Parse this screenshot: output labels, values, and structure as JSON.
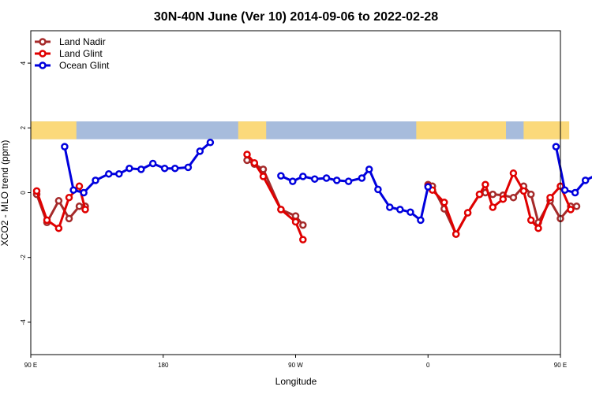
{
  "chart_data": {
    "type": "line",
    "title": "30N-40N June (Ver 10)   2014-09-06 to 2022-02-28",
    "xlabel": "Longitude",
    "ylabel": "XCO2 - MLO trend (ppm)",
    "xlim": [
      90,
      450
    ],
    "ylim": [
      -5,
      5
    ],
    "xticks": [
      {
        "value": 90,
        "label": "90 E"
      },
      {
        "value": 180,
        "label": "180"
      },
      {
        "value": 270,
        "label": "90 W"
      },
      {
        "value": 360,
        "label": "0"
      },
      {
        "value": 450,
        "label": "90 E"
      },
      {
        "value": 540,
        "label": "180"
      }
    ],
    "yticks": [
      {
        "value": -4,
        "label": "-4"
      },
      {
        "value": -2,
        "label": "-2"
      },
      {
        "value": 0,
        "label": "0"
      },
      {
        "value": 2,
        "label": "2"
      },
      {
        "value": 4,
        "label": "4"
      }
    ],
    "legend_position": "top-left",
    "map_strip": {
      "y_range": [
        1.65,
        2.2
      ],
      "ocean_color": "#a7bcdc",
      "land_color": "#fbd97a"
    },
    "series": [
      {
        "name": "Land Nadir",
        "color": "#a52a2a",
        "segments": [
          [
            [
              94,
              -0.05
            ],
            [
              101,
              -0.92
            ],
            [
              109,
              -0.25
            ],
            [
              116,
              -0.8
            ],
            [
              123,
              -0.42
            ],
            [
              127,
              -0.42
            ]
          ],
          [
            [
              237,
              1.0
            ],
            [
              242,
              0.88
            ],
            [
              248,
              0.72
            ],
            [
              260,
              -0.52
            ],
            [
              270,
              -0.72
            ],
            [
              275,
              -1.0
            ]
          ],
          [
            [
              360,
              0.25
            ],
            [
              363,
              0.2
            ],
            [
              371,
              -0.5
            ],
            [
              379,
              -1.28
            ],
            [
              387,
              -0.62
            ],
            [
              395,
              -0.05
            ],
            [
              399,
              0.0
            ],
            [
              404,
              -0.05
            ],
            [
              411,
              -0.08
            ],
            [
              418,
              -0.15
            ],
            [
              425,
              0.2
            ],
            [
              430,
              -0.05
            ],
            [
              435,
              -0.92
            ],
            [
              443,
              -0.25
            ],
            [
              450,
              -0.8
            ],
            [
              457,
              -0.42
            ],
            [
              461,
              -0.42
            ]
          ]
        ]
      },
      {
        "name": "Land Glint",
        "color": "#e00000",
        "segments": [
          [
            [
              94,
              0.05
            ],
            [
              101,
              -0.85
            ],
            [
              109,
              -1.1
            ],
            [
              116,
              -0.15
            ],
            [
              123,
              0.2
            ],
            [
              127,
              -0.52
            ]
          ],
          [
            [
              237,
              1.18
            ],
            [
              242,
              0.92
            ],
            [
              248,
              0.5
            ],
            [
              260,
              -0.52
            ],
            [
              270,
              -0.9
            ],
            [
              275,
              -1.45
            ]
          ],
          [
            [
              360,
              0.2
            ],
            [
              363,
              0.08
            ],
            [
              371,
              -0.3
            ],
            [
              379,
              -1.28
            ],
            [
              387,
              -0.62
            ],
            [
              395,
              -0.05
            ],
            [
              399,
              0.25
            ],
            [
              404,
              -0.45
            ],
            [
              411,
              -0.2
            ],
            [
              418,
              0.6
            ],
            [
              425,
              0.05
            ],
            [
              430,
              -0.85
            ],
            [
              435,
              -1.1
            ],
            [
              443,
              -0.15
            ],
            [
              450,
              0.2
            ],
            [
              457,
              -0.52
            ]
          ]
        ]
      },
      {
        "name": "Ocean Glint",
        "color": "#0000dd",
        "segments": [
          [
            [
              113,
              1.42
            ],
            [
              119,
              0.08
            ],
            [
              126,
              0.0
            ],
            [
              134,
              0.38
            ],
            [
              143,
              0.58
            ],
            [
              150,
              0.58
            ],
            [
              157,
              0.75
            ],
            [
              165,
              0.72
            ],
            [
              173,
              0.9
            ],
            [
              181,
              0.75
            ],
            [
              188,
              0.75
            ],
            [
              197,
              0.78
            ],
            [
              205,
              1.28
            ],
            [
              212,
              1.55
            ]
          ],
          [
            [
              260,
              0.52
            ],
            [
              268,
              0.35
            ],
            [
              275,
              0.5
            ],
            [
              283,
              0.42
            ],
            [
              291,
              0.45
            ],
            [
              298,
              0.38
            ],
            [
              306,
              0.35
            ],
            [
              315,
              0.45
            ],
            [
              320,
              0.72
            ],
            [
              326,
              0.1
            ],
            [
              334,
              -0.45
            ],
            [
              341,
              -0.52
            ],
            [
              348,
              -0.6
            ],
            [
              355,
              -0.85
            ],
            [
              360,
              0.18
            ]
          ],
          [
            [
              447,
              1.42
            ],
            [
              453,
              0.08
            ],
            [
              460,
              0.0
            ],
            [
              467,
              0.38
            ],
            [
              476,
              0.58
            ],
            [
              484,
              0.58
            ],
            [
              492,
              0.75
            ]
          ]
        ]
      }
    ]
  }
}
